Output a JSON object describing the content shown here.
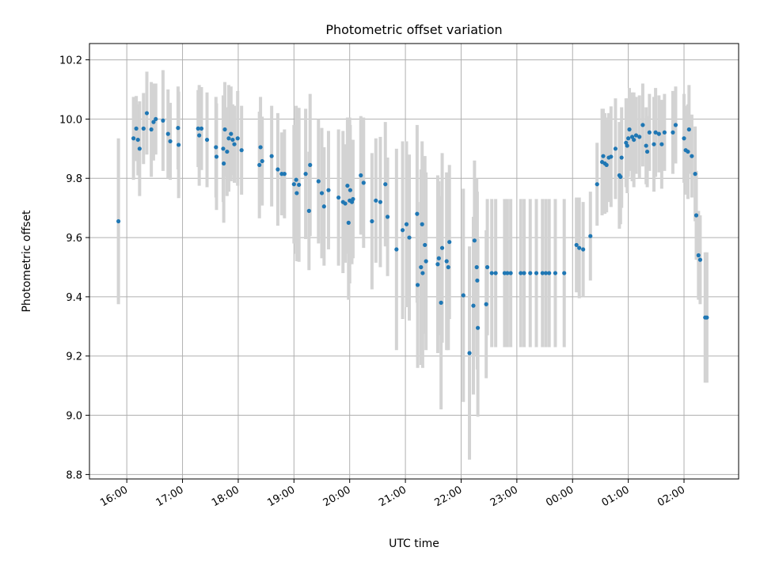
{
  "chart_data": {
    "type": "scatter",
    "title": "Photometric offset variation",
    "xlabel": "UTC time",
    "ylabel": "Photometric offset",
    "xlim_hours": [
      15.33,
      26.98
    ],
    "ylim": [
      8.785,
      10.255
    ],
    "grid": true,
    "x_ticks": [
      {
        "h": 16,
        "label": "16:00"
      },
      {
        "h": 17,
        "label": "17:00"
      },
      {
        "h": 18,
        "label": "18:00"
      },
      {
        "h": 19,
        "label": "19:00"
      },
      {
        "h": 20,
        "label": "20:00"
      },
      {
        "h": 21,
        "label": "21:00"
      },
      {
        "h": 22,
        "label": "22:00"
      },
      {
        "h": 23,
        "label": "23:00"
      },
      {
        "h": 24,
        "label": "00:00"
      },
      {
        "h": 25,
        "label": "01:00"
      },
      {
        "h": 26,
        "label": "02:00"
      }
    ],
    "y_ticks": [
      {
        "v": 8.8,
        "label": "8.8"
      },
      {
        "v": 9.0,
        "label": "9.0"
      },
      {
        "v": 9.2,
        "label": "9.2"
      },
      {
        "v": 9.4,
        "label": "9.4"
      },
      {
        "v": 9.6,
        "label": "9.6"
      },
      {
        "v": 9.8,
        "label": "9.8"
      },
      {
        "v": 10.0,
        "label": "10.0"
      },
      {
        "v": 10.2,
        "label": "10.2"
      }
    ],
    "series": [
      {
        "name": "offset",
        "point_color": "#1f77b4",
        "errorbar_color": "#d3d3d3",
        "points": [
          {
            "x": 15.85,
            "y": 9.655,
            "err": 0.28
          },
          {
            "x": 16.12,
            "y": 9.935,
            "err": 0.14
          },
          {
            "x": 16.17,
            "y": 9.968,
            "err": 0.11
          },
          {
            "x": 16.2,
            "y": 9.93,
            "err": 0.12
          },
          {
            "x": 16.23,
            "y": 9.9,
            "err": 0.16
          },
          {
            "x": 16.3,
            "y": 9.968,
            "err": 0.12
          },
          {
            "x": 16.36,
            "y": 10.02,
            "err": 0.14
          },
          {
            "x": 16.44,
            "y": 9.965,
            "err": 0.16
          },
          {
            "x": 16.48,
            "y": 9.99,
            "err": 0.13
          },
          {
            "x": 16.52,
            "y": 10.0,
            "err": 0.12
          },
          {
            "x": 16.65,
            "y": 9.995,
            "err": 0.17
          },
          {
            "x": 16.74,
            "y": 9.95,
            "err": 0.15
          },
          {
            "x": 16.78,
            "y": 9.925,
            "err": 0.13
          },
          {
            "x": 16.92,
            "y": 9.97,
            "err": 0.14
          },
          {
            "x": 16.93,
            "y": 9.913,
            "err": 0.18
          },
          {
            "x": 17.28,
            "y": 9.968,
            "err": 0.13
          },
          {
            "x": 17.3,
            "y": 9.945,
            "err": 0.17
          },
          {
            "x": 17.34,
            "y": 9.968,
            "err": 0.14
          },
          {
            "x": 17.44,
            "y": 9.93,
            "err": 0.16
          },
          {
            "x": 17.6,
            "y": 9.905,
            "err": 0.17
          },
          {
            "x": 17.61,
            "y": 9.873,
            "err": 0.18
          },
          {
            "x": 17.73,
            "y": 9.9,
            "err": 0.18
          },
          {
            "x": 17.74,
            "y": 9.85,
            "err": 0.2
          },
          {
            "x": 17.76,
            "y": 9.965,
            "err": 0.16
          },
          {
            "x": 17.8,
            "y": 9.89,
            "err": 0.15
          },
          {
            "x": 17.83,
            "y": 9.935,
            "err": 0.18
          },
          {
            "x": 17.87,
            "y": 9.95,
            "err": 0.16
          },
          {
            "x": 17.9,
            "y": 9.93,
            "err": 0.12
          },
          {
            "x": 17.93,
            "y": 9.915,
            "err": 0.13
          },
          {
            "x": 17.99,
            "y": 9.935,
            "err": 0.16
          },
          {
            "x": 18.06,
            "y": 9.895,
            "err": 0.15
          },
          {
            "x": 18.38,
            "y": 9.845,
            "err": 0.18
          },
          {
            "x": 18.4,
            "y": 9.905,
            "err": 0.17
          },
          {
            "x": 18.43,
            "y": 9.858,
            "err": 0.15
          },
          {
            "x": 18.6,
            "y": 9.875,
            "err": 0.17
          },
          {
            "x": 18.71,
            "y": 9.83,
            "err": 0.19
          },
          {
            "x": 18.78,
            "y": 9.815,
            "err": 0.14
          },
          {
            "x": 18.83,
            "y": 9.815,
            "err": 0.15
          },
          {
            "x": 19.0,
            "y": 9.78,
            "err": 0.2
          },
          {
            "x": 19.04,
            "y": 9.795,
            "err": 0.25
          },
          {
            "x": 19.05,
            "y": 9.75,
            "err": 0.23
          },
          {
            "x": 19.09,
            "y": 9.778,
            "err": 0.26
          },
          {
            "x": 19.21,
            "y": 9.815,
            "err": 0.22
          },
          {
            "x": 19.27,
            "y": 9.69,
            "err": 0.2
          },
          {
            "x": 19.29,
            "y": 9.845,
            "err": 0.24
          },
          {
            "x": 19.44,
            "y": 9.79,
            "err": 0.21
          },
          {
            "x": 19.5,
            "y": 9.75,
            "err": 0.22
          },
          {
            "x": 19.54,
            "y": 9.705,
            "err": 0.2
          },
          {
            "x": 19.62,
            "y": 9.76,
            "err": 0.2
          },
          {
            "x": 19.8,
            "y": 9.735,
            "err": 0.23
          },
          {
            "x": 19.88,
            "y": 9.72,
            "err": 0.24
          },
          {
            "x": 19.92,
            "y": 9.715,
            "err": 0.2
          },
          {
            "x": 19.96,
            "y": 9.775,
            "err": 0.23
          },
          {
            "x": 19.98,
            "y": 9.65,
            "err": 0.26
          },
          {
            "x": 20.0,
            "y": 9.725,
            "err": 0.28
          },
          {
            "x": 20.01,
            "y": 9.76,
            "err": 0.22
          },
          {
            "x": 20.04,
            "y": 9.72,
            "err": 0.21
          },
          {
            "x": 20.06,
            "y": 9.73,
            "err": 0.2
          },
          {
            "x": 20.2,
            "y": 9.81,
            "err": 0.2
          },
          {
            "x": 20.25,
            "y": 9.785,
            "err": 0.22
          },
          {
            "x": 20.4,
            "y": 9.655,
            "err": 0.23
          },
          {
            "x": 20.47,
            "y": 9.725,
            "err": 0.21
          },
          {
            "x": 20.55,
            "y": 9.72,
            "err": 0.22
          },
          {
            "x": 20.64,
            "y": 9.78,
            "err": 0.21
          },
          {
            "x": 20.68,
            "y": 9.67,
            "err": 0.2
          },
          {
            "x": 20.84,
            "y": 9.56,
            "err": 0.34
          },
          {
            "x": 20.95,
            "y": 9.625,
            "err": 0.3
          },
          {
            "x": 21.02,
            "y": 9.645,
            "err": 0.28
          },
          {
            "x": 21.07,
            "y": 9.6,
            "err": 0.28
          },
          {
            "x": 21.21,
            "y": 9.68,
            "err": 0.3
          },
          {
            "x": 21.22,
            "y": 9.44,
            "err": 0.28
          },
          {
            "x": 21.28,
            "y": 9.5,
            "err": 0.33
          },
          {
            "x": 21.3,
            "y": 9.645,
            "err": 0.28
          },
          {
            "x": 21.31,
            "y": 9.48,
            "err": 0.32
          },
          {
            "x": 21.35,
            "y": 9.575,
            "err": 0.3
          },
          {
            "x": 21.37,
            "y": 9.52,
            "err": 0.3
          },
          {
            "x": 21.58,
            "y": 9.51,
            "err": 0.3
          },
          {
            "x": 21.6,
            "y": 9.53,
            "err": 0.26
          },
          {
            "x": 21.64,
            "y": 9.38,
            "err": 0.36
          },
          {
            "x": 21.66,
            "y": 9.565,
            "err": 0.32
          },
          {
            "x": 21.74,
            "y": 9.52,
            "err": 0.3
          },
          {
            "x": 21.77,
            "y": 9.5,
            "err": 0.28
          },
          {
            "x": 21.79,
            "y": 9.585,
            "err": 0.26
          },
          {
            "x": 22.04,
            "y": 9.405,
            "err": 0.36
          },
          {
            "x": 22.15,
            "y": 9.21,
            "err": 0.36
          },
          {
            "x": 22.22,
            "y": 9.37,
            "err": 0.3
          },
          {
            "x": 22.24,
            "y": 9.59,
            "err": 0.27
          },
          {
            "x": 22.28,
            "y": 9.5,
            "err": 0.3
          },
          {
            "x": 22.29,
            "y": 9.455,
            "err": 0.3
          },
          {
            "x": 22.3,
            "y": 9.295,
            "err": 0.3
          },
          {
            "x": 22.45,
            "y": 9.375,
            "err": 0.25
          },
          {
            "x": 22.47,
            "y": 9.5,
            "err": 0.23
          },
          {
            "x": 22.55,
            "y": 9.48,
            "err": 0.25
          },
          {
            "x": 22.62,
            "y": 9.48,
            "err": 0.25
          },
          {
            "x": 22.78,
            "y": 9.48,
            "err": 0.25
          },
          {
            "x": 22.83,
            "y": 9.48,
            "err": 0.25
          },
          {
            "x": 22.89,
            "y": 9.48,
            "err": 0.25
          },
          {
            "x": 23.07,
            "y": 9.48,
            "err": 0.25
          },
          {
            "x": 23.13,
            "y": 9.48,
            "err": 0.25
          },
          {
            "x": 23.24,
            "y": 9.48,
            "err": 0.25
          },
          {
            "x": 23.35,
            "y": 9.48,
            "err": 0.25
          },
          {
            "x": 23.46,
            "y": 9.48,
            "err": 0.25
          },
          {
            "x": 23.52,
            "y": 9.48,
            "err": 0.25
          },
          {
            "x": 23.58,
            "y": 9.48,
            "err": 0.25
          },
          {
            "x": 23.69,
            "y": 9.48,
            "err": 0.25
          },
          {
            "x": 23.85,
            "y": 9.48,
            "err": 0.25
          },
          {
            "x": 24.07,
            "y": 9.575,
            "err": 0.16
          },
          {
            "x": 24.12,
            "y": 9.565,
            "err": 0.17
          },
          {
            "x": 24.19,
            "y": 9.56,
            "err": 0.16
          },
          {
            "x": 24.32,
            "y": 9.605,
            "err": 0.15
          },
          {
            "x": 24.44,
            "y": 9.78,
            "err": 0.14
          },
          {
            "x": 24.53,
            "y": 9.855,
            "err": 0.18
          },
          {
            "x": 24.55,
            "y": 9.875,
            "err": 0.16
          },
          {
            "x": 24.58,
            "y": 9.85,
            "err": 0.17
          },
          {
            "x": 24.61,
            "y": 9.845,
            "err": 0.16
          },
          {
            "x": 24.65,
            "y": 9.87,
            "err": 0.15
          },
          {
            "x": 24.69,
            "y": 9.873,
            "err": 0.17
          },
          {
            "x": 24.77,
            "y": 9.9,
            "err": 0.17
          },
          {
            "x": 24.84,
            "y": 9.81,
            "err": 0.18
          },
          {
            "x": 24.86,
            "y": 9.805,
            "err": 0.16
          },
          {
            "x": 24.88,
            "y": 9.87,
            "err": 0.17
          },
          {
            "x": 24.96,
            "y": 9.92,
            "err": 0.15
          },
          {
            "x": 24.98,
            "y": 9.91,
            "err": 0.16
          },
          {
            "x": 25.0,
            "y": 9.935,
            "err": 0.13
          },
          {
            "x": 25.02,
            "y": 9.965,
            "err": 0.14
          },
          {
            "x": 25.07,
            "y": 9.94,
            "err": 0.15
          },
          {
            "x": 25.1,
            "y": 9.93,
            "err": 0.16
          },
          {
            "x": 25.14,
            "y": 9.945,
            "err": 0.13
          },
          {
            "x": 25.2,
            "y": 9.94,
            "err": 0.14
          },
          {
            "x": 25.26,
            "y": 9.98,
            "err": 0.14
          },
          {
            "x": 25.32,
            "y": 9.91,
            "err": 0.13
          },
          {
            "x": 25.34,
            "y": 9.89,
            "err": 0.12
          },
          {
            "x": 25.38,
            "y": 9.955,
            "err": 0.13
          },
          {
            "x": 25.46,
            "y": 9.915,
            "err": 0.16
          },
          {
            "x": 25.49,
            "y": 9.955,
            "err": 0.15
          },
          {
            "x": 25.55,
            "y": 9.95,
            "err": 0.13
          },
          {
            "x": 25.6,
            "y": 9.915,
            "err": 0.15
          },
          {
            "x": 25.65,
            "y": 9.955,
            "err": 0.13
          },
          {
            "x": 25.8,
            "y": 9.955,
            "err": 0.14
          },
          {
            "x": 25.85,
            "y": 9.98,
            "err": 0.13
          },
          {
            "x": 26.0,
            "y": 9.935,
            "err": 0.15
          },
          {
            "x": 26.03,
            "y": 9.895,
            "err": 0.15
          },
          {
            "x": 26.07,
            "y": 9.89,
            "err": 0.16
          },
          {
            "x": 26.09,
            "y": 9.965,
            "err": 0.15
          },
          {
            "x": 26.14,
            "y": 9.875,
            "err": 0.14
          },
          {
            "x": 26.2,
            "y": 9.815,
            "err": 0.16
          },
          {
            "x": 26.22,
            "y": 9.675,
            "err": 0.15
          },
          {
            "x": 26.26,
            "y": 9.54,
            "err": 0.15
          },
          {
            "x": 26.29,
            "y": 9.525,
            "err": 0.15
          },
          {
            "x": 26.38,
            "y": 9.33,
            "err": 0.22
          },
          {
            "x": 26.41,
            "y": 9.33,
            "err": 0.22
          }
        ]
      }
    ]
  }
}
